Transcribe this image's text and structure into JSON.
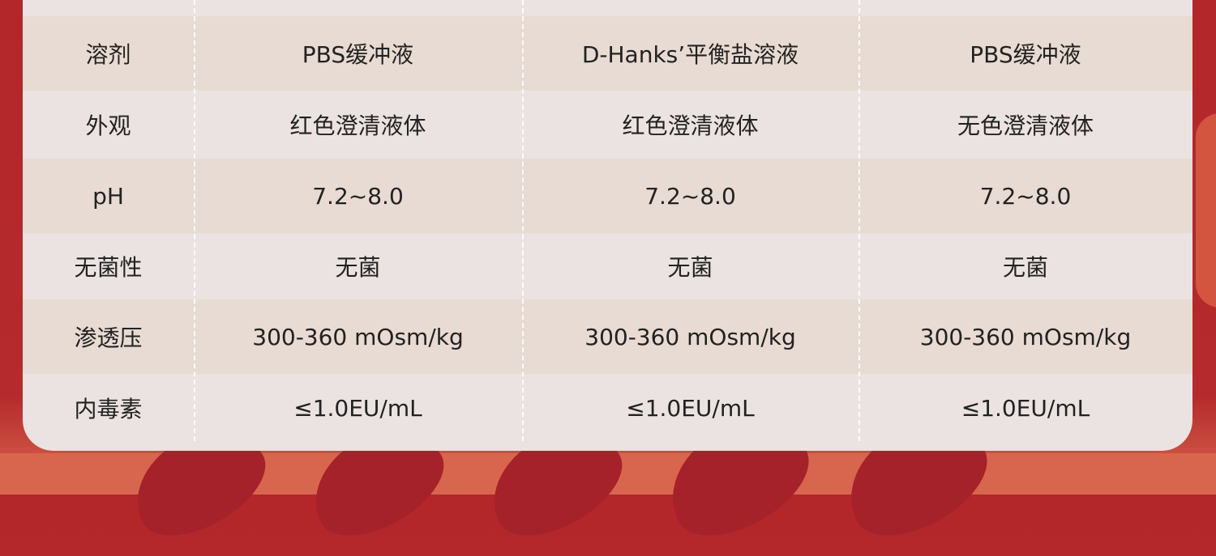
{
  "colors": {
    "background": "#b3272b",
    "card": "#ebe3e1",
    "row_alt": "#e8dbd3",
    "text": "#222222"
  },
  "rows": [
    {
      "label": "溶剂",
      "values": [
        "PBS缓冲液",
        "D-Hanks’平衡盐溶液",
        "PBS缓冲液"
      ]
    },
    {
      "label": "外观",
      "values": [
        "红色澄清液体",
        "红色澄清液体",
        "无色澄清液体"
      ]
    },
    {
      "label": "pH",
      "values": [
        "7.2~8.0",
        "7.2~8.0",
        "7.2~8.0"
      ]
    },
    {
      "label": "无菌性",
      "values": [
        "无菌",
        "无菌",
        "无菌"
      ]
    },
    {
      "label": "渗透压",
      "values": [
        "300-360 mOsm/kg",
        "300-360 mOsm/kg",
        "300-360 mOsm/kg"
      ]
    },
    {
      "label": "内毒素",
      "values": [
        "≤1.0EU/mL",
        "≤1.0EU/mL",
        "≤1.0EU/mL"
      ]
    }
  ]
}
